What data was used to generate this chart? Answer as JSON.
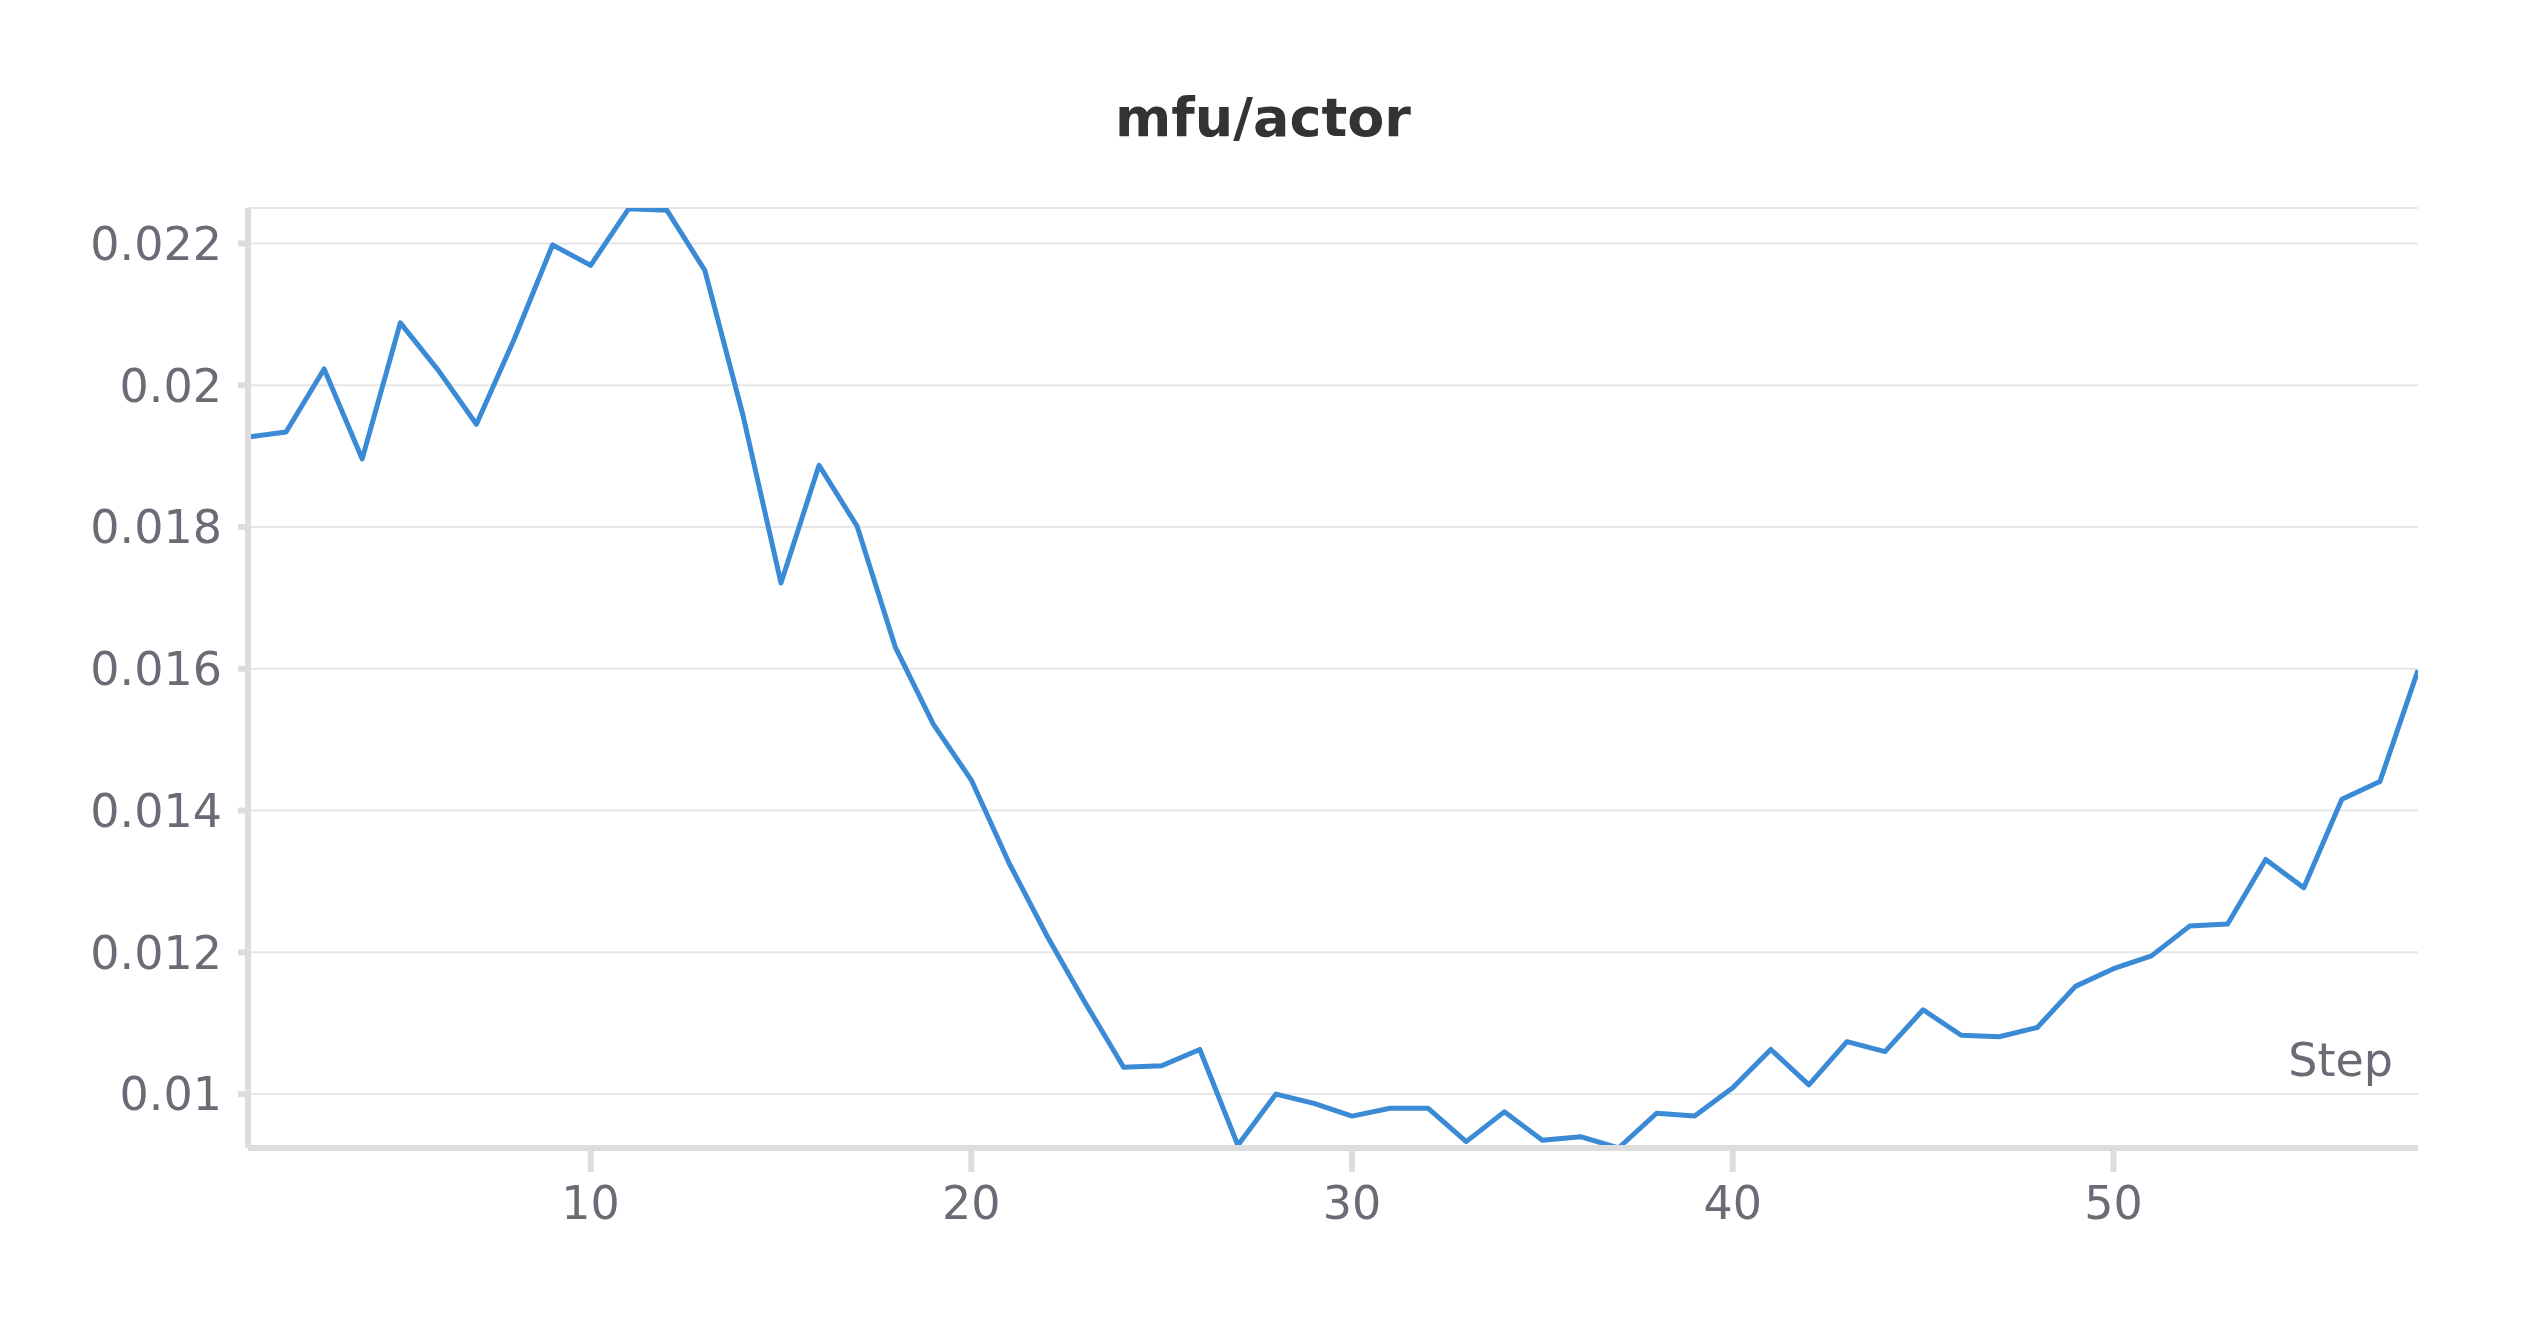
{
  "chart_data": {
    "type": "line",
    "title": "mfu/actor",
    "xlabel": "Step",
    "x": [
      1,
      2,
      3,
      4,
      5,
      6,
      7,
      8,
      9,
      10,
      11,
      12,
      13,
      14,
      15,
      16,
      17,
      18,
      19,
      20,
      21,
      22,
      23,
      24,
      25,
      26,
      27,
      28,
      29,
      30,
      31,
      32,
      33,
      34,
      35,
      36,
      37,
      38,
      39,
      40,
      41,
      42,
      43,
      44,
      45,
      46,
      47,
      48,
      49,
      50,
      51,
      52,
      53,
      54,
      55,
      56,
      57,
      58
    ],
    "series": [
      {
        "color": "#3a8ad6",
        "values": [
          0.01927,
          0.01934,
          0.02023,
          0.01896,
          0.02088,
          0.02021,
          0.01945,
          0.02066,
          0.02198,
          0.02169,
          0.02249,
          0.02247,
          0.02162,
          0.01958,
          0.01721,
          0.01887,
          0.01801,
          0.01631,
          0.01522,
          0.01443,
          0.01325,
          0.01222,
          0.01128,
          0.01038,
          0.0104,
          0.01063,
          0.00928,
          0.01,
          0.00987,
          0.00969,
          0.0098,
          0.0098,
          0.00933,
          0.00975,
          0.00935,
          0.0094,
          0.00924,
          0.00973,
          0.00969,
          0.01009,
          0.01063,
          0.01013,
          0.01074,
          0.0106,
          0.01119,
          0.01083,
          0.01081,
          0.01094,
          0.01152,
          0.01177,
          0.01195,
          0.01237,
          0.0124,
          0.01331,
          0.01291,
          0.01416,
          0.01441,
          0.01598
        ]
      }
    ],
    "xlim": [
      1,
      58
    ],
    "xticks": [
      10,
      20,
      30,
      40,
      50
    ],
    "ylim": [
      0.00924,
      0.0225
    ],
    "yticks": [
      0.01,
      0.012,
      0.014,
      0.016,
      0.018,
      0.02,
      0.022
    ],
    "grid": "y",
    "legend": false,
    "marker": "none",
    "line_style": "solid"
  }
}
